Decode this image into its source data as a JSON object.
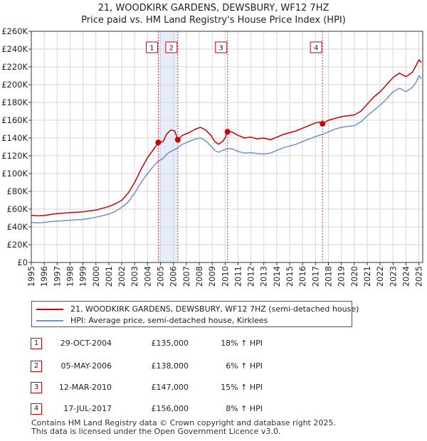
{
  "chart_data": {
    "type": "line",
    "title": "21, WOODKIRK GARDENS, DEWSBURY, WF12 7HZ",
    "subtitle": "Price paid vs. HM Land Registry's House Price Index (HPI)",
    "xlim": [
      1995,
      2025.3
    ],
    "ylim": [
      0,
      260000
    ],
    "y_ticks": [
      {
        "value": 0,
        "label": "£0"
      },
      {
        "value": 20000,
        "label": "£20K"
      },
      {
        "value": 40000,
        "label": "£40K"
      },
      {
        "value": 60000,
        "label": "£60K"
      },
      {
        "value": 80000,
        "label": "£80K"
      },
      {
        "value": 100000,
        "label": "£100K"
      },
      {
        "value": 120000,
        "label": "£120K"
      },
      {
        "value": 140000,
        "label": "£140K"
      },
      {
        "value": 160000,
        "label": "£160K"
      },
      {
        "value": 180000,
        "label": "£180K"
      },
      {
        "value": 200000,
        "label": "£200K"
      },
      {
        "value": 220000,
        "label": "£220K"
      },
      {
        "value": 240000,
        "label": "£240K"
      },
      {
        "value": 260000,
        "label": "£260K"
      }
    ],
    "x_ticks": [
      "1995",
      "1996",
      "1997",
      "1998",
      "1999",
      "2000",
      "2001",
      "2002",
      "2003",
      "2004",
      "2005",
      "2006",
      "2007",
      "2008",
      "2009",
      "2010",
      "2011",
      "2012",
      "2013",
      "2014",
      "2015",
      "2016",
      "2017",
      "2018",
      "2019",
      "2020",
      "2021",
      "2022",
      "2023",
      "2024",
      "2025"
    ],
    "shaded_periods": [
      [
        2004.83,
        2006.34
      ]
    ],
    "series": [
      {
        "name": "21, WOODKIRK GARDENS, DEWSBURY, WF12 7HZ (semi-detached house)",
        "color": "#cc0000",
        "points": [
          [
            1995.0,
            53000
          ],
          [
            1995.5,
            52500
          ],
          [
            1996.0,
            52800
          ],
          [
            1996.5,
            54000
          ],
          [
            1997.0,
            55000
          ],
          [
            1997.5,
            55500
          ],
          [
            1998.0,
            56000
          ],
          [
            1998.5,
            56500
          ],
          [
            1999.0,
            57000
          ],
          [
            1999.5,
            58000
          ],
          [
            2000.0,
            59000
          ],
          [
            2000.5,
            61000
          ],
          [
            2001.0,
            63000
          ],
          [
            2001.5,
            66000
          ],
          [
            2002.0,
            70000
          ],
          [
            2002.5,
            78000
          ],
          [
            2003.0,
            90000
          ],
          [
            2003.5,
            105000
          ],
          [
            2004.0,
            118000
          ],
          [
            2004.5,
            128000
          ],
          [
            2004.83,
            135000
          ],
          [
            2005.2,
            136000
          ],
          [
            2005.5,
            145000
          ],
          [
            2005.8,
            149000
          ],
          [
            2006.1,
            148000
          ],
          [
            2006.34,
            138000
          ],
          [
            2006.7,
            143000
          ],
          [
            2007.2,
            146000
          ],
          [
            2007.7,
            150000
          ],
          [
            2008.1,
            152000
          ],
          [
            2008.5,
            149000
          ],
          [
            2008.9,
            143000
          ],
          [
            2009.2,
            136000
          ],
          [
            2009.5,
            133000
          ],
          [
            2009.8,
            136000
          ],
          [
            2010.0,
            140000
          ],
          [
            2010.19,
            147000
          ],
          [
            2010.5,
            147000
          ],
          [
            2011.0,
            143000
          ],
          [
            2011.5,
            140000
          ],
          [
            2012.0,
            141000
          ],
          [
            2012.5,
            139000
          ],
          [
            2013.0,
            140000
          ],
          [
            2013.5,
            138000
          ],
          [
            2014.0,
            141000
          ],
          [
            2014.5,
            144000
          ],
          [
            2015.0,
            146000
          ],
          [
            2015.5,
            148000
          ],
          [
            2016.0,
            151000
          ],
          [
            2016.5,
            154000
          ],
          [
            2017.0,
            157000
          ],
          [
            2017.3,
            158000
          ],
          [
            2017.54,
            156000
          ],
          [
            2018.0,
            160000
          ],
          [
            2018.5,
            162000
          ],
          [
            2019.0,
            164000
          ],
          [
            2019.5,
            165000
          ],
          [
            2020.0,
            166000
          ],
          [
            2020.5,
            170000
          ],
          [
            2021.0,
            178000
          ],
          [
            2021.5,
            186000
          ],
          [
            2022.0,
            192000
          ],
          [
            2022.5,
            200000
          ],
          [
            2023.0,
            208000
          ],
          [
            2023.5,
            213000
          ],
          [
            2024.0,
            209000
          ],
          [
            2024.5,
            214000
          ],
          [
            2024.8,
            222000
          ],
          [
            2025.0,
            228000
          ],
          [
            2025.2,
            225000
          ]
        ]
      },
      {
        "name": "HPI: Average price, semi-detached house, Kirklees",
        "color": "#6b93c9",
        "points": [
          [
            1995.0,
            45000
          ],
          [
            1995.5,
            44500
          ],
          [
            1996.0,
            45000
          ],
          [
            1996.5,
            46000
          ],
          [
            1997.0,
            46500
          ],
          [
            1997.5,
            47000
          ],
          [
            1998.0,
            47500
          ],
          [
            1998.5,
            48000
          ],
          [
            1999.0,
            48500
          ],
          [
            1999.5,
            49500
          ],
          [
            2000.0,
            51000
          ],
          [
            2000.5,
            52500
          ],
          [
            2001.0,
            54500
          ],
          [
            2001.5,
            57500
          ],
          [
            2002.0,
            62000
          ],
          [
            2002.5,
            68000
          ],
          [
            2003.0,
            78000
          ],
          [
            2003.5,
            90000
          ],
          [
            2004.0,
            100000
          ],
          [
            2004.5,
            109000
          ],
          [
            2004.83,
            114000
          ],
          [
            2005.2,
            117000
          ],
          [
            2005.5,
            122000
          ],
          [
            2005.8,
            125000
          ],
          [
            2006.1,
            127000
          ],
          [
            2006.34,
            129000
          ],
          [
            2006.7,
            133000
          ],
          [
            2007.2,
            136000
          ],
          [
            2007.7,
            139000
          ],
          [
            2008.1,
            140000
          ],
          [
            2008.5,
            137000
          ],
          [
            2008.9,
            131000
          ],
          [
            2009.2,
            126000
          ],
          [
            2009.5,
            124000
          ],
          [
            2009.8,
            126000
          ],
          [
            2010.0,
            127000
          ],
          [
            2010.19,
            128000
          ],
          [
            2010.5,
            128000
          ],
          [
            2011.0,
            125000
          ],
          [
            2011.5,
            123000
          ],
          [
            2012.0,
            123500
          ],
          [
            2012.5,
            122500
          ],
          [
            2013.0,
            122000
          ],
          [
            2013.5,
            123000
          ],
          [
            2014.0,
            126000
          ],
          [
            2014.5,
            129000
          ],
          [
            2015.0,
            131000
          ],
          [
            2015.5,
            133000
          ],
          [
            2016.0,
            136000
          ],
          [
            2016.5,
            139000
          ],
          [
            2017.0,
            141500
          ],
          [
            2017.3,
            143000
          ],
          [
            2017.54,
            144000
          ],
          [
            2018.0,
            147000
          ],
          [
            2018.5,
            150000
          ],
          [
            2019.0,
            152000
          ],
          [
            2019.5,
            153000
          ],
          [
            2020.0,
            154000
          ],
          [
            2020.5,
            158000
          ],
          [
            2021.0,
            165000
          ],
          [
            2021.5,
            171000
          ],
          [
            2022.0,
            177000
          ],
          [
            2022.5,
            184000
          ],
          [
            2023.0,
            192000
          ],
          [
            2023.5,
            196000
          ],
          [
            2024.0,
            192000
          ],
          [
            2024.5,
            197000
          ],
          [
            2024.8,
            203000
          ],
          [
            2025.0,
            210000
          ],
          [
            2025.2,
            207000
          ]
        ]
      }
    ],
    "sales": [
      {
        "num": "1",
        "x": 2004.83,
        "y": 135000
      },
      {
        "num": "2",
        "x": 2006.34,
        "y": 138000
      },
      {
        "num": "3",
        "x": 2010.19,
        "y": 147000
      },
      {
        "num": "4",
        "x": 2017.54,
        "y": 156000
      }
    ]
  },
  "legend": {
    "property_label": "21, WOODKIRK GARDENS, DEWSBURY, WF12 7HZ (semi-detached house)",
    "hpi_label": "HPI: Average price, semi-detached house, Kirklees"
  },
  "transactions": [
    {
      "num": "1",
      "date": "29-OCT-2004",
      "price": "£135,000",
      "hpi": "18% ↑ HPI"
    },
    {
      "num": "2",
      "date": "05-MAY-2006",
      "price": "£138,000",
      "hpi": "6% ↑ HPI"
    },
    {
      "num": "3",
      "date": "12-MAR-2010",
      "price": "£147,000",
      "hpi": "15% ↑ HPI"
    },
    {
      "num": "4",
      "date": "17-JUL-2017",
      "price": "£156,000",
      "hpi": "8% ↑ HPI"
    }
  ],
  "footer": {
    "line1": "Contains HM Land Registry data © Crown copyright and database right 2025.",
    "line2": "This data is licensed under the Open Government Licence v3.0."
  }
}
